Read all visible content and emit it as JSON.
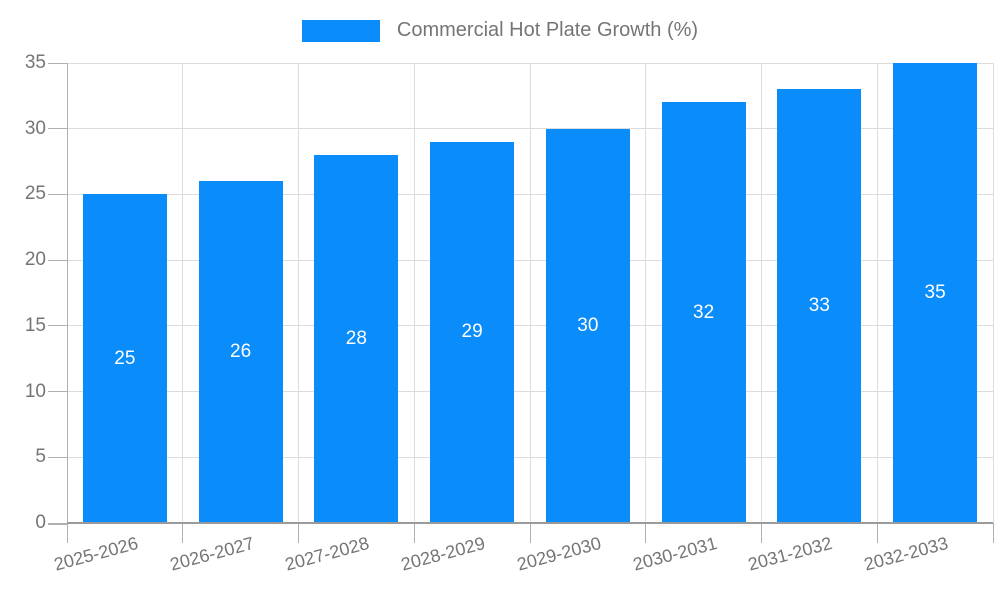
{
  "chart_data": {
    "type": "bar",
    "title": "Commercial Hot Plate Growth (%)",
    "categories": [
      "2025-2026",
      "2026-2027",
      "2027-2028",
      "2028-2029",
      "2029-2030",
      "2030-2031",
      "2031-2032",
      "2032-2033"
    ],
    "values": [
      25,
      26,
      28,
      29,
      30,
      32,
      33,
      35
    ],
    "xlabel": "",
    "ylabel": "",
    "ylim": [
      0,
      35
    ],
    "yticks": [
      0,
      5,
      10,
      15,
      20,
      25,
      30,
      35
    ],
    "grid": true,
    "legend_position": "top",
    "colors": {
      "bar": "#0a8cfa",
      "value_label": "#ffffff",
      "axis_text": "#757575",
      "gridline": "#dcdcdc",
      "axis_line": "#b0b0b0",
      "baseline": "#9a9a9a"
    }
  }
}
